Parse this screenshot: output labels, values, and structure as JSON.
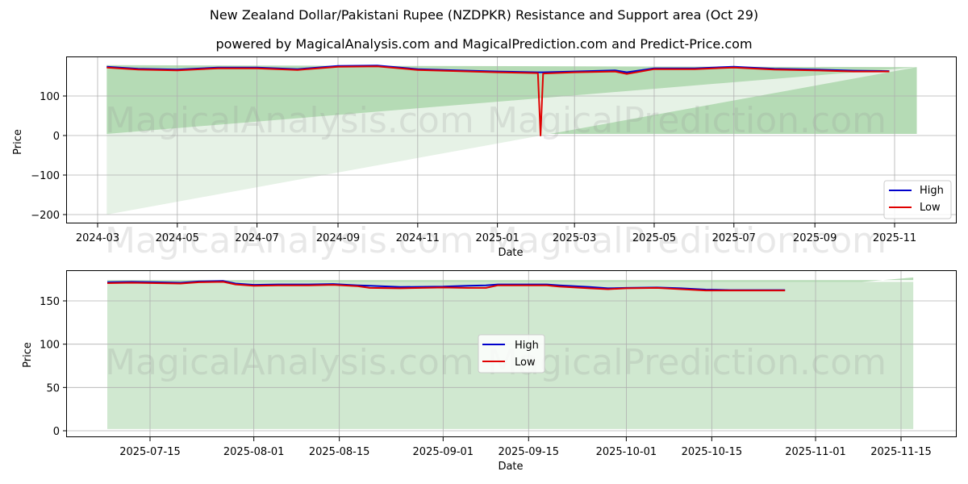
{
  "header": {
    "title": "New Zealand Dollar/Pakistani Rupee (NZDPKR) Resistance and Support area (Oct 29)",
    "subtitle": "powered by MagicalAnalysis.com and MagicalPrediction.com and Predict-Price.com"
  },
  "watermarks": [
    "MagicalAnalysis.com",
    "MagicalPrediction.com"
  ],
  "colors": {
    "high": "#0000cc",
    "low": "#e00000",
    "zone_dark": "#b5dbb5",
    "zone_light": "#d0e8d0",
    "zone_lighter": "#e6f2e6",
    "grid": "#b0b0b0"
  },
  "chart_data": [
    {
      "type": "line",
      "title": "",
      "xlabel": "Date",
      "ylabel": "Price",
      "ylim": [
        -220,
        192
      ],
      "yticks": [
        -200,
        -100,
        0,
        100
      ],
      "ytick_labels": [
        "−200",
        "−100",
        "0",
        "100"
      ],
      "xtick_labels": [
        "2024-03",
        "2024-05",
        "2024-07",
        "2024-09",
        "2024-11",
        "2025-01",
        "2025-03",
        "2025-05",
        "2025-07",
        "2025-09",
        "2025-11"
      ],
      "grid": true,
      "legend": {
        "position": "lower right",
        "entries": [
          "High",
          "Low"
        ]
      },
      "x": [
        "2024-03-08",
        "2024-04-01",
        "2024-05-01",
        "2024-06-01",
        "2024-07-01",
        "2024-08-01",
        "2024-09-01",
        "2024-10-01",
        "2024-11-01",
        "2024-12-01",
        "2025-01-01",
        "2025-02-01",
        "2025-02-03",
        "2025-02-05",
        "2025-03-01",
        "2025-04-01",
        "2025-04-10",
        "2025-05-01",
        "2025-06-01",
        "2025-07-01",
        "2025-08-01",
        "2025-09-01",
        "2025-10-01",
        "2025-10-28"
      ],
      "series": [
        {
          "name": "High",
          "values": [
            174,
            169,
            167,
            172,
            172,
            168,
            176,
            177,
            168,
            165,
            162,
            160,
            160,
            160,
            162,
            165,
            160,
            170,
            170,
            174,
            169,
            167,
            164,
            163
          ]
        },
        {
          "name": "Low",
          "values": [
            172,
            167,
            165,
            170,
            170,
            166,
            174,
            175,
            166,
            163,
            160,
            158,
            0,
            157,
            160,
            162,
            156,
            168,
            168,
            172,
            167,
            165,
            162,
            162
          ]
        }
      ],
      "zones": [
        {
          "name": "resistance-support band",
          "from": "2024-03-08",
          "to": "2025-11-18",
          "top_start": 178,
          "top_end": 173,
          "bottom_start": 4,
          "bottom_end": 4
        },
        {
          "name": "support wedge",
          "from": "2024-03-08",
          "to": "2025-11-18",
          "top_start": 4,
          "top_end": 173,
          "bottom_start": -200,
          "bottom_end": 173
        }
      ]
    },
    {
      "type": "line",
      "title": "",
      "xlabel": "Date",
      "ylabel": "Price",
      "ylim": [
        -7,
        185
      ],
      "yticks": [
        0,
        50,
        100,
        150
      ],
      "ytick_labels": [
        "0",
        "50",
        "100",
        "150"
      ],
      "xtick_labels": [
        "2025-07-15",
        "2025-08-01",
        "2025-08-15",
        "2025-09-01",
        "2025-09-15",
        "2025-10-01",
        "2025-10-15",
        "2025-11-01",
        "2025-11-15"
      ],
      "grid": true,
      "legend": {
        "position": "center left",
        "entries": [
          "High",
          "Low"
        ]
      },
      "x": [
        "2025-07-08",
        "2025-07-12",
        "2025-07-16",
        "2025-07-20",
        "2025-07-23",
        "2025-07-27",
        "2025-07-29",
        "2025-08-01",
        "2025-08-05",
        "2025-08-10",
        "2025-08-14",
        "2025-08-18",
        "2025-08-20",
        "2025-08-25",
        "2025-09-01",
        "2025-09-05",
        "2025-09-08",
        "2025-09-10",
        "2025-09-15",
        "2025-09-18",
        "2025-09-20",
        "2025-09-25",
        "2025-09-28",
        "2025-10-01",
        "2025-10-06",
        "2025-10-10",
        "2025-10-14",
        "2025-10-18",
        "2025-10-22",
        "2025-10-27"
      ],
      "series": [
        {
          "name": "High",
          "values": [
            171.5,
            172,
            171.5,
            171,
            172.5,
            173,
            170,
            168.5,
            169,
            169,
            169.5,
            168,
            167.5,
            166,
            166.5,
            167.5,
            168,
            169,
            169,
            169,
            168,
            166,
            164.5,
            165,
            165.5,
            164.5,
            163,
            162.5,
            162.5,
            162.5
          ]
        },
        {
          "name": "Low",
          "values": [
            170.5,
            171,
            170.5,
            170,
            171.5,
            172,
            169,
            167.5,
            168,
            168,
            168.5,
            167,
            165,
            164.5,
            165.5,
            165,
            165,
            168,
            168,
            168,
            166.5,
            164.5,
            163.5,
            164.5,
            165,
            163.5,
            162,
            162,
            162,
            162
          ]
        }
      ],
      "zones": [
        {
          "name": "resistance band",
          "from": "2025-07-08",
          "to": "2025-11-17",
          "top_start": 174,
          "top_end": 174,
          "bottom_start": 97,
          "bottom_end": 177
        },
        {
          "name": "support band",
          "from": "2025-07-08",
          "to": "2025-11-17",
          "top_start": 172,
          "top_end": 172,
          "bottom_start": 2,
          "bottom_end": 2
        }
      ]
    }
  ]
}
